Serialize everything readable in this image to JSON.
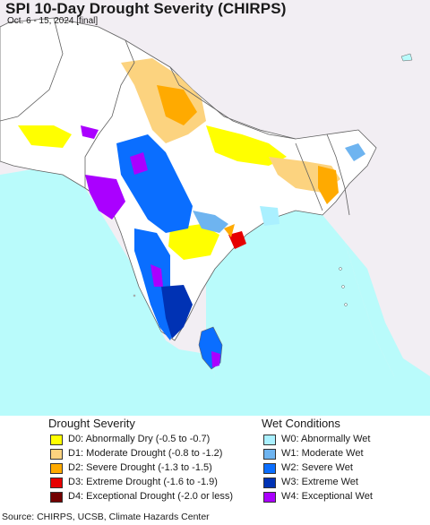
{
  "header": {
    "title": "SPI 10-Day Drought Severity (CHIRPS)",
    "subtitle": "Oct. 6 - 15, 2024 [final]"
  },
  "map": {
    "colors": {
      "ocean": "#b9fbfb",
      "land": "#ffffff",
      "outside": "#f2eef3",
      "border": "#606060"
    },
    "icons": [
      "south-asia-map",
      "country-borders"
    ]
  },
  "legend": {
    "drought": {
      "heading": "Drought Severity",
      "items": [
        {
          "label": "D0: Abnormally Dry (-0.5 to -0.7)",
          "color": "#ffff00"
        },
        {
          "label": "D1: Moderate Drought (-0.8 to -1.2)",
          "color": "#fcd37f"
        },
        {
          "label": "D2: Severe Drought (-1.3 to -1.5)",
          "color": "#ffaa00"
        },
        {
          "label": "D3: Extreme Drought (-1.6 to -1.9)",
          "color": "#e60000"
        },
        {
          "label": "D4: Exceptional Drought (-2.0 or less)",
          "color": "#730000"
        }
      ]
    },
    "wet": {
      "heading": "Wet Conditions",
      "items": [
        {
          "label": "W0: Abnormally Wet",
          "color": "#aaf0ff"
        },
        {
          "label": "W1: Moderate Wet",
          "color": "#6eb4f0"
        },
        {
          "label": "W2: Severe Wet",
          "color": "#0a6eff"
        },
        {
          "label": "W3: Extreme Wet",
          "color": "#0032b4"
        },
        {
          "label": "W4: Exceptional Wet",
          "color": "#aa00ff"
        }
      ]
    }
  },
  "footer": {
    "source": "Source: CHIRPS, UCSB, Climate Hazards Center"
  }
}
